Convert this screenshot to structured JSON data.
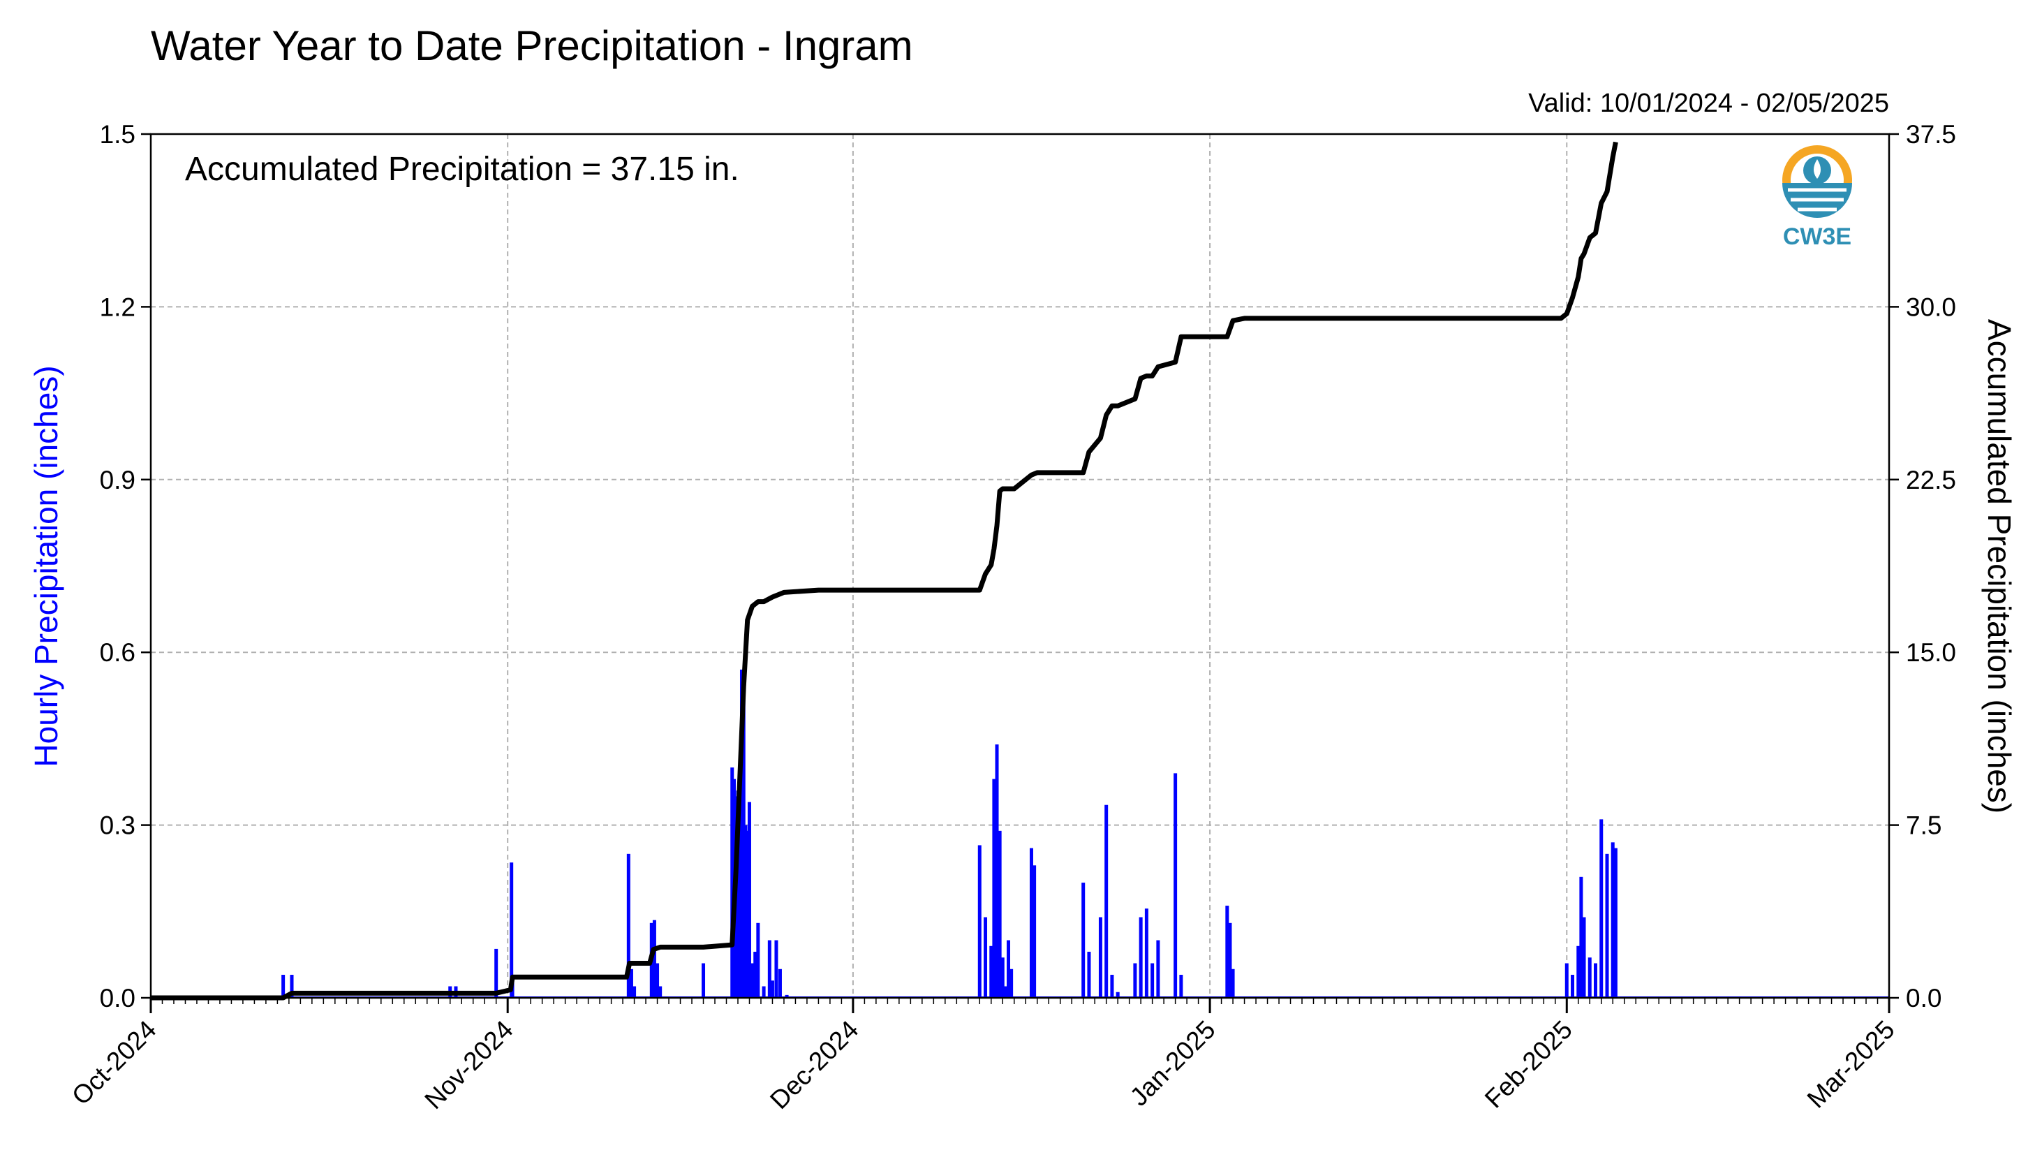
{
  "chart_data": {
    "type": "bar+line",
    "title": "Water Year to Date Precipitation - Ingram",
    "subtitle": "Valid: 10/01/2024 - 02/05/2025",
    "annotation": "Accumulated Precipitation = 37.15 in.",
    "logo_text": "CW3E",
    "ylabel_left": "Hourly Precipitation (inches)",
    "ylabel_right": "Accumulated Precipitation (inches)",
    "ylim_left": [
      0,
      1.5
    ],
    "ylim_right": [
      0,
      37.5
    ],
    "yticks_left": [
      "0.0",
      "0.3",
      "0.6",
      "0.9",
      "1.2",
      "1.5"
    ],
    "yticks_right": [
      "0.0",
      "7.5",
      "15.0",
      "22.5",
      "30.0",
      "37.5"
    ],
    "xlim": [
      "2024-10-01",
      "2025-03-01"
    ],
    "xticks": [
      "Oct-2024",
      "Nov-2024",
      "Dec-2024",
      "Jan-2025",
      "Feb-2025",
      "Mar-2025"
    ],
    "grid": true,
    "colors": {
      "hourly": "#0000ff",
      "accumulated": "#000000",
      "grid": "#b0b0b0",
      "logo": "#2e8fb4",
      "logo_sun": "#f5a623"
    },
    "series": [
      {
        "name": "Hourly Precipitation",
        "axis": "left",
        "style": "bar",
        "x": [
          "2024-10-12T12",
          "2024-10-13T06",
          "2024-10-27T00",
          "2024-10-27T12",
          "2024-10-31T00",
          "2024-11-01T08",
          "2024-11-01T10",
          "2024-11-11T12",
          "2024-11-11T18",
          "2024-11-12T00",
          "2024-11-13T12",
          "2024-11-13T18",
          "2024-11-14T00",
          "2024-11-14T06",
          "2024-11-18T00",
          "2024-11-20T12",
          "2024-11-20T16",
          "2024-11-20T20",
          "2024-11-21T00",
          "2024-11-21T04",
          "2024-11-21T08",
          "2024-11-21T12",
          "2024-11-21T16",
          "2024-11-21T20",
          "2024-11-22T00",
          "2024-11-22T06",
          "2024-11-22T12",
          "2024-11-22T18",
          "2024-11-23T06",
          "2024-11-23T18",
          "2024-11-24T00",
          "2024-11-24T08",
          "2024-11-24T16",
          "2024-11-25T06",
          "2024-12-12T00",
          "2024-12-12T12",
          "2024-12-13T00",
          "2024-12-13T06",
          "2024-12-13T12",
          "2024-12-13T18",
          "2024-12-14T00",
          "2024-12-14T06",
          "2024-12-14T12",
          "2024-12-14T18",
          "2024-12-16T12",
          "2024-12-16T18",
          "2024-12-21T00",
          "2024-12-21T12",
          "2024-12-22T12",
          "2024-12-23T00",
          "2024-12-23T12",
          "2024-12-24T00",
          "2024-12-25T12",
          "2024-12-26T00",
          "2024-12-26T12",
          "2024-12-27T00",
          "2024-12-27T12",
          "2024-12-29T00",
          "2024-12-29T12",
          "2025-01-02T12",
          "2025-01-02T18",
          "2025-01-03T00",
          "2025-02-01T00",
          "2025-02-01T12",
          "2025-02-02T00",
          "2025-02-02T06",
          "2025-02-02T12",
          "2025-02-03T00",
          "2025-02-03T12",
          "2025-02-04T00",
          "2025-02-04T12",
          "2025-02-05T00",
          "2025-02-05T06"
        ],
        "values": [
          0.04,
          0.04,
          0.02,
          0.02,
          0.085,
          0.235,
          0.03,
          0.25,
          0.05,
          0.02,
          0.13,
          0.135,
          0.06,
          0.02,
          0.06,
          0.4,
          0.38,
          0.35,
          0.36,
          0.3,
          0.57,
          0.55,
          0.3,
          0.29,
          0.34,
          0.06,
          0.08,
          0.13,
          0.02,
          0.1,
          0.03,
          0.1,
          0.05,
          0.005,
          0.265,
          0.14,
          0.09,
          0.38,
          0.44,
          0.29,
          0.07,
          0.02,
          0.1,
          0.05,
          0.26,
          0.23,
          0.2,
          0.08,
          0.14,
          0.335,
          0.04,
          0.01,
          0.06,
          0.14,
          0.155,
          0.06,
          0.1,
          0.39,
          0.04,
          0.16,
          0.13,
          0.05,
          0.06,
          0.04,
          0.09,
          0.21,
          0.14,
          0.07,
          0.06,
          0.31,
          0.25,
          0.27,
          0.26
        ]
      },
      {
        "name": "Accumulated Precipitation",
        "axis": "right",
        "style": "line",
        "x": [
          "2024-10-01T00",
          "2024-10-12T12",
          "2024-10-13T06",
          "2024-10-27T00",
          "2024-10-31T00",
          "2024-11-01T06",
          "2024-11-01T10",
          "2024-11-11T08",
          "2024-11-11T14",
          "2024-11-13T08",
          "2024-11-13T16",
          "2024-11-14T06",
          "2024-11-18T00",
          "2024-11-20T12",
          "2024-11-20T20",
          "2024-11-21T04",
          "2024-11-21T12",
          "2024-11-21T20",
          "2024-11-22T06",
          "2024-11-22T18",
          "2024-11-23T06",
          "2024-11-24T00",
          "2024-11-25T00",
          "2024-11-28T00",
          "2024-12-12T00",
          "2024-12-12T12",
          "2024-12-13T00",
          "2024-12-13T06",
          "2024-12-13T12",
          "2024-12-13T18",
          "2024-12-14T00",
          "2024-12-15T00",
          "2024-12-16T12",
          "2024-12-17T00",
          "2024-12-21T00",
          "2024-12-21T12",
          "2024-12-22T12",
          "2024-12-23T00",
          "2024-12-23T12",
          "2024-12-24T00",
          "2024-12-25T12",
          "2024-12-26T00",
          "2024-12-26T12",
          "2024-12-27T00",
          "2024-12-27T12",
          "2024-12-29T00",
          "2024-12-29T12",
          "2025-01-02T12",
          "2025-01-03T00",
          "2025-01-04T00",
          "2025-01-31T12",
          "2025-02-01T00",
          "2025-02-01T12",
          "2025-02-02T00",
          "2025-02-02T06",
          "2025-02-02T12",
          "2025-02-03T00",
          "2025-02-03T12",
          "2025-02-04T00",
          "2025-02-04T12",
          "2025-02-05T00",
          "2025-02-05T06"
        ],
        "values": [
          0.0,
          0.0,
          0.2,
          0.2,
          0.2,
          0.35,
          0.9,
          0.9,
          1.5,
          1.5,
          2.1,
          2.2,
          2.2,
          2.3,
          5.5,
          9.5,
          13.5,
          16.4,
          17.0,
          17.2,
          17.2,
          17.4,
          17.6,
          17.7,
          17.7,
          18.4,
          18.8,
          19.5,
          20.5,
          22.0,
          22.1,
          22.1,
          22.7,
          22.8,
          22.8,
          23.7,
          24.3,
          25.3,
          25.7,
          25.7,
          26.0,
          26.9,
          27.0,
          27.0,
          27.4,
          27.6,
          28.7,
          28.7,
          29.4,
          29.5,
          29.5,
          29.7,
          30.4,
          31.3,
          32.1,
          32.3,
          33.0,
          33.2,
          34.5,
          35.0,
          36.5,
          37.15
        ]
      }
    ]
  }
}
